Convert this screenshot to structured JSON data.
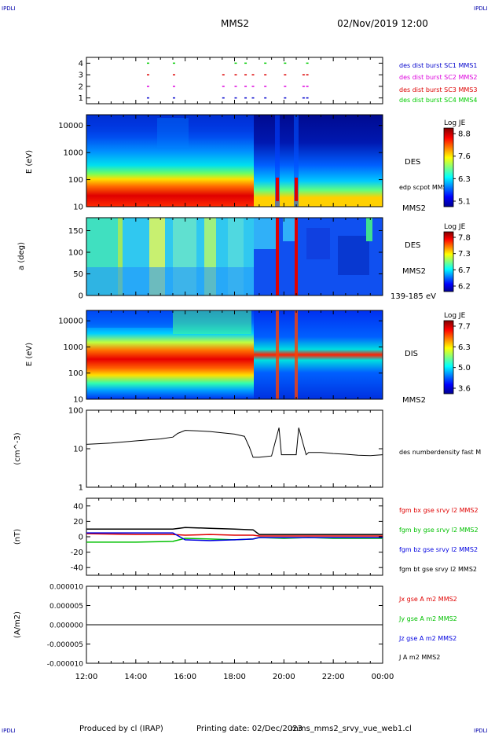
{
  "header": {
    "corner_left": "IPDLI",
    "corner_right": "IPDLI",
    "title": "MMS2",
    "datetime": "02/Nov/2019 12:00"
  },
  "footer": {
    "produced": "Produced by cl (IRAP)",
    "printing": "Printing date: 02/Dec/2023",
    "file": "mms_mms2_srvy_vue_web1.cl",
    "corner_left": "IPDLI",
    "corner_right": "IPDLI"
  },
  "x_axis": {
    "ticks": [
      "12:00",
      "14:00",
      "16:00",
      "18:00",
      "20:00",
      "22:00",
      "00:00"
    ],
    "range_hours": [
      12,
      24
    ]
  },
  "colors": {
    "mms1": "#0000cc",
    "mms2": "#dd00dd",
    "mms3": "#dd0000",
    "mms4": "#00cc00",
    "bx": "#e00000",
    "by": "#00c000",
    "bz": "#0000e0",
    "bt": "#000000"
  },
  "chart_data": [
    {
      "type": "scatter",
      "id": "burst",
      "y_ticks": [
        "1",
        "2",
        "3",
        "4"
      ],
      "ylim": [
        0.5,
        4.5
      ],
      "legend": [
        {
          "label": "des dist burst SC1 MMS1",
          "color": "#0000cc",
          "row": 1
        },
        {
          "label": "des dist burst SC2 MMS2",
          "color": "#dd00dd",
          "row": 2
        },
        {
          "label": "des dist burst SC3 MMS3",
          "color": "#dd0000",
          "row": 3
        },
        {
          "label": "des dist burst SC4 MMS4",
          "color": "#00cc00",
          "row": 4
        }
      ],
      "burst_hours": [
        14.45,
        15.5,
        17.5,
        18.0,
        18.4,
        18.7,
        19.2,
        20.0,
        20.75,
        20.9
      ]
    },
    {
      "type": "heatmap",
      "id": "des_energy",
      "ylabel": "E (eV)",
      "y_ticks": [
        "10",
        "100",
        "1000",
        "10000"
      ],
      "ylim": [
        10,
        25000
      ],
      "y_scale": "log",
      "right_labels": [
        "DES",
        "edp scpot MMS2",
        "MMS2"
      ],
      "colorbar": {
        "title": "Log JE",
        "ticks": [
          "8.8",
          "7.6",
          "6.3",
          "5.1"
        ]
      }
    },
    {
      "type": "heatmap",
      "id": "des_pitch",
      "ylabel": "a (deg)",
      "y_ticks": [
        "0",
        "50",
        "100",
        "150"
      ],
      "ylim": [
        0,
        180
      ],
      "right_labels": [
        "DES",
        "MMS2",
        "139-185 eV"
      ],
      "colorbar": {
        "title": "Log JE",
        "ticks": [
          "7.8",
          "7.3",
          "6.7",
          "6.2"
        ]
      }
    },
    {
      "type": "heatmap",
      "id": "dis_energy",
      "ylabel": "E (eV)",
      "y_ticks": [
        "10",
        "100",
        "1000",
        "10000"
      ],
      "ylim": [
        10,
        25000
      ],
      "y_scale": "log",
      "right_labels": [
        "DIS",
        "MMS2"
      ],
      "colorbar": {
        "title": "Log JE",
        "ticks": [
          "7.7",
          "6.3",
          "5.0",
          "3.6"
        ]
      }
    },
    {
      "type": "line",
      "id": "density",
      "ylabel": "(cm^-3)",
      "y_ticks": [
        "1",
        "10",
        "100"
      ],
      "ylim": [
        1,
        100
      ],
      "y_scale": "log",
      "series": [
        {
          "name": "des numberdensity fast M",
          "color": "#000000",
          "x": [
            12.0,
            13.0,
            13.5,
            14.0,
            14.5,
            15.0,
            15.5,
            15.7,
            16.0,
            16.5,
            17.0,
            17.5,
            18.0,
            18.4,
            18.6,
            18.75,
            19.0,
            19.5,
            19.8,
            19.9,
            20.2,
            20.5,
            20.6,
            20.9,
            21.0,
            21.5,
            22.0,
            22.5,
            23.0,
            23.5,
            24.0
          ],
          "y": [
            13,
            14,
            15,
            16,
            17,
            18,
            20,
            25,
            30,
            29,
            28,
            26,
            24,
            21,
            11,
            6,
            6,
            6.5,
            35,
            7,
            7,
            7,
            35,
            7,
            8,
            8,
            7.5,
            7.2,
            6.8,
            6.6,
            7
          ]
        }
      ]
    },
    {
      "type": "line",
      "id": "fgm",
      "ylabel": "(nT)",
      "y_ticks": [
        "-40",
        "-20",
        "0",
        "20",
        "40"
      ],
      "ylim": [
        -50,
        50
      ],
      "series": [
        {
          "name": "fgm bx gse srvy l2 MMS2",
          "color": "#e00000",
          "x": [
            12.0,
            14.0,
            15.5,
            16.0,
            17.0,
            18.0,
            18.75,
            19.0,
            20.0,
            21.0,
            22.0,
            23.0,
            24.0
          ],
          "y": [
            4,
            3,
            3,
            2,
            3,
            2,
            2,
            1,
            1,
            1,
            1,
            1,
            1
          ]
        },
        {
          "name": "fgm by gse srvy l2 MMS2",
          "color": "#00c000",
          "x": [
            12.0,
            14.0,
            15.5,
            16.0,
            17.0,
            18.0,
            18.75,
            19.0,
            20.0,
            21.0,
            22.0,
            23.0,
            24.0
          ],
          "y": [
            -7,
            -7,
            -6,
            -2,
            -3,
            -4,
            -3,
            -1,
            -2,
            -1,
            -2,
            -2,
            -2
          ]
        },
        {
          "name": "fgm bz gse srvy l2 MMS2",
          "color": "#0000e0",
          "x": [
            12.0,
            14.0,
            15.5,
            16.0,
            17.0,
            18.0,
            18.75,
            19.0,
            20.0,
            21.0,
            22.0,
            23.0,
            24.0
          ],
          "y": [
            5,
            5,
            5,
            -4,
            -5,
            -4,
            -3,
            -1,
            -1,
            -1,
            -1,
            -1,
            -1
          ]
        },
        {
          "name": "fgm bt gse srvy l2 MMS2",
          "color": "#000000",
          "x": [
            12.0,
            14.0,
            15.5,
            16.0,
            17.0,
            18.0,
            18.75,
            19.0,
            20.0,
            21.0,
            22.0,
            23.0,
            24.0
          ],
          "y": [
            10,
            10,
            10,
            12,
            11,
            10,
            9,
            3,
            3,
            3,
            3,
            3,
            3
          ]
        }
      ]
    },
    {
      "type": "line",
      "id": "current",
      "ylabel": "(A/m2)",
      "y_ticks": [
        "0.000010",
        "0.000005",
        "0.000000",
        "-0.000005",
        "-0.000010"
      ],
      "ylim": [
        -1e-05,
        1e-05
      ],
      "series": [
        {
          "name": "Jx gse A m2 MMS2",
          "color": "#e00000",
          "x": [
            12.0,
            24.0
          ],
          "y": [
            0,
            0
          ]
        },
        {
          "name": "Jy gse A m2 MMS2",
          "color": "#00c000",
          "x": [
            12.0,
            24.0
          ],
          "y": [
            0,
            0
          ]
        },
        {
          "name": "Jz gse A m2 MMS2",
          "color": "#0000e0",
          "x": [
            12.0,
            24.0
          ],
          "y": [
            0,
            0
          ]
        },
        {
          "name": "J A m2 MMS2",
          "color": "#000000",
          "x": [
            12.0,
            24.0
          ],
          "y": [
            0,
            0
          ]
        }
      ]
    }
  ]
}
